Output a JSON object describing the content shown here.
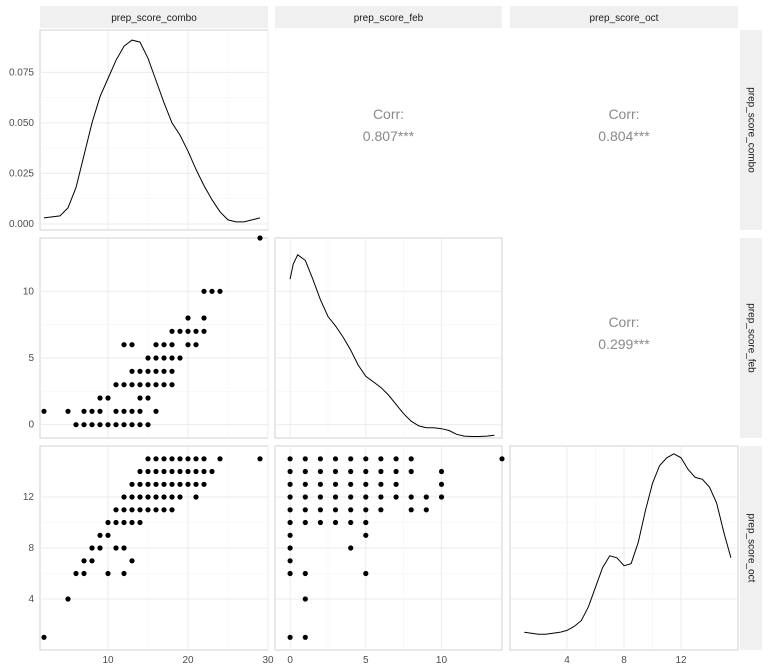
{
  "chart_data": {
    "type": "pairs",
    "variables": [
      "prep_score_combo",
      "prep_score_feb",
      "prep_score_oct"
    ],
    "ticks": {
      "prep_score_combo": [
        10,
        20,
        30
      ],
      "prep_score_feb": [
        0,
        5,
        10
      ],
      "prep_score_oct": [
        4,
        8,
        12
      ],
      "density_combo": [
        "0.000",
        "0.025",
        "0.050",
        "0.075"
      ]
    },
    "ranges": {
      "prep_score_combo": [
        1.5,
        30
      ],
      "prep_score_feb": [
        -1,
        14
      ],
      "prep_score_oct": [
        0,
        16
      ],
      "density_combo": [
        -0.003,
        0.096
      ],
      "density_feb_rel": [
        0,
        1.07
      ],
      "density_oct_rel": [
        0,
        1.04
      ]
    },
    "correlations": [
      {
        "pair": [
          "prep_score_combo",
          "prep_score_feb"
        ],
        "label": "Corr:",
        "value": "0.807***"
      },
      {
        "pair": [
          "prep_score_combo",
          "prep_score_oct"
        ],
        "label": "Corr:",
        "value": "0.804***"
      },
      {
        "pair": [
          "prep_score_feb",
          "prep_score_oct"
        ],
        "label": "Corr:",
        "value": "0.299***"
      }
    ],
    "density_combo": [
      [
        2,
        0.003
      ],
      [
        4,
        0.004
      ],
      [
        5,
        0.008
      ],
      [
        6,
        0.018
      ],
      [
        7,
        0.034
      ],
      [
        8,
        0.05
      ],
      [
        9,
        0.063
      ],
      [
        10,
        0.072
      ],
      [
        11,
        0.081
      ],
      [
        12,
        0.088
      ],
      [
        13,
        0.091
      ],
      [
        14,
        0.09
      ],
      [
        15,
        0.082
      ],
      [
        16,
        0.071
      ],
      [
        17,
        0.06
      ],
      [
        18,
        0.05
      ],
      [
        19,
        0.044
      ],
      [
        20,
        0.036
      ],
      [
        21,
        0.027
      ],
      [
        22,
        0.019
      ],
      [
        23,
        0.012
      ],
      [
        24,
        0.006
      ],
      [
        25,
        0.002
      ],
      [
        26,
        0.001
      ],
      [
        27,
        0.001
      ],
      [
        28,
        0.002
      ],
      [
        29,
        0.003
      ]
    ],
    "density_feb": [
      [
        0,
        0.85
      ],
      [
        0.2,
        0.93
      ],
      [
        0.5,
        0.98
      ],
      [
        1,
        0.95
      ],
      [
        1.5,
        0.85
      ],
      [
        2,
        0.74
      ],
      [
        2.5,
        0.65
      ],
      [
        3,
        0.6
      ],
      [
        3.5,
        0.54
      ],
      [
        4,
        0.47
      ],
      [
        4.5,
        0.39
      ],
      [
        5,
        0.33
      ],
      [
        5.5,
        0.3
      ],
      [
        6,
        0.27
      ],
      [
        6.5,
        0.23
      ],
      [
        7,
        0.18
      ],
      [
        7.5,
        0.13
      ],
      [
        8,
        0.09
      ],
      [
        8.5,
        0.065
      ],
      [
        9,
        0.055
      ],
      [
        9.5,
        0.055
      ],
      [
        10,
        0.05
      ],
      [
        10.5,
        0.04
      ],
      [
        11,
        0.02
      ],
      [
        11.5,
        0.01
      ],
      [
        12,
        0.008
      ],
      [
        12.5,
        0.008
      ],
      [
        13,
        0.01
      ],
      [
        13.5,
        0.015
      ]
    ],
    "density_oct": [
      [
        1,
        0.09
      ],
      [
        1.5,
        0.085
      ],
      [
        2,
        0.08
      ],
      [
        2.5,
        0.08
      ],
      [
        3,
        0.085
      ],
      [
        3.5,
        0.09
      ],
      [
        4,
        0.1
      ],
      [
        4.5,
        0.12
      ],
      [
        5,
        0.15
      ],
      [
        5.5,
        0.22
      ],
      [
        6,
        0.32
      ],
      [
        6.5,
        0.42
      ],
      [
        7,
        0.48
      ],
      [
        7.5,
        0.47
      ],
      [
        8,
        0.43
      ],
      [
        8.5,
        0.44
      ],
      [
        9,
        0.55
      ],
      [
        9.5,
        0.71
      ],
      [
        10,
        0.85
      ],
      [
        10.5,
        0.94
      ],
      [
        11,
        0.98
      ],
      [
        11.5,
        1.0
      ],
      [
        12,
        0.98
      ],
      [
        12.5,
        0.92
      ],
      [
        13,
        0.88
      ],
      [
        13.5,
        0.87
      ],
      [
        14,
        0.83
      ],
      [
        14.5,
        0.75
      ],
      [
        15,
        0.6
      ],
      [
        15.5,
        0.47
      ]
    ],
    "points_feb_vs_combo": [
      [
        2,
        1
      ],
      [
        5,
        1
      ],
      [
        6,
        0
      ],
      [
        7,
        0
      ],
      [
        7,
        1
      ],
      [
        8,
        0
      ],
      [
        8,
        1
      ],
      [
        9,
        0
      ],
      [
        9,
        1
      ],
      [
        9,
        2
      ],
      [
        10,
        0
      ],
      [
        10,
        2
      ],
      [
        11,
        0
      ],
      [
        11,
        1
      ],
      [
        11,
        3
      ],
      [
        12,
        0
      ],
      [
        12,
        1
      ],
      [
        12,
        3
      ],
      [
        12,
        6
      ],
      [
        13,
        0
      ],
      [
        13,
        1
      ],
      [
        13,
        3
      ],
      [
        13,
        4
      ],
      [
        13,
        6
      ],
      [
        14,
        0
      ],
      [
        14,
        1
      ],
      [
        14,
        2
      ],
      [
        14,
        3
      ],
      [
        14,
        4
      ],
      [
        15,
        0
      ],
      [
        15,
        2
      ],
      [
        15,
        3
      ],
      [
        15,
        4
      ],
      [
        15,
        5
      ],
      [
        16,
        1
      ],
      [
        16,
        3
      ],
      [
        16,
        4
      ],
      [
        16,
        5
      ],
      [
        16,
        6
      ],
      [
        17,
        3
      ],
      [
        17,
        4
      ],
      [
        17,
        5
      ],
      [
        17,
        6
      ],
      [
        18,
        3
      ],
      [
        18,
        4
      ],
      [
        18,
        5
      ],
      [
        18,
        6
      ],
      [
        18,
        7
      ],
      [
        19,
        5
      ],
      [
        19,
        7
      ],
      [
        20,
        6
      ],
      [
        20,
        7
      ],
      [
        20,
        8
      ],
      [
        21,
        6
      ],
      [
        21,
        7
      ],
      [
        22,
        7
      ],
      [
        22,
        8
      ],
      [
        22,
        10
      ],
      [
        23,
        10
      ],
      [
        24,
        10
      ],
      [
        29,
        14
      ]
    ],
    "points_oct_vs_combo": [
      [
        2,
        1
      ],
      [
        5,
        4
      ],
      [
        6,
        6
      ],
      [
        7,
        6
      ],
      [
        7,
        7
      ],
      [
        8,
        7
      ],
      [
        8,
        8
      ],
      [
        9,
        8
      ],
      [
        9,
        9
      ],
      [
        10,
        6
      ],
      [
        10,
        9
      ],
      [
        10,
        10
      ],
      [
        11,
        8
      ],
      [
        11,
        10
      ],
      [
        11,
        11
      ],
      [
        12,
        6
      ],
      [
        12,
        8
      ],
      [
        12,
        10
      ],
      [
        12,
        11
      ],
      [
        12,
        12
      ],
      [
        13,
        7
      ],
      [
        13,
        10
      ],
      [
        13,
        11
      ],
      [
        13,
        12
      ],
      [
        13,
        13
      ],
      [
        14,
        10
      ],
      [
        14,
        11
      ],
      [
        14,
        12
      ],
      [
        14,
        13
      ],
      [
        14,
        14
      ],
      [
        15,
        11
      ],
      [
        15,
        12
      ],
      [
        15,
        13
      ],
      [
        15,
        14
      ],
      [
        15,
        15
      ],
      [
        16,
        11
      ],
      [
        16,
        12
      ],
      [
        16,
        13
      ],
      [
        16,
        14
      ],
      [
        16,
        15
      ],
      [
        17,
        11
      ],
      [
        17,
        12
      ],
      [
        17,
        13
      ],
      [
        17,
        14
      ],
      [
        17,
        15
      ],
      [
        18,
        11
      ],
      [
        18,
        12
      ],
      [
        18,
        13
      ],
      [
        18,
        14
      ],
      [
        18,
        15
      ],
      [
        19,
        12
      ],
      [
        19,
        13
      ],
      [
        19,
        14
      ],
      [
        19,
        15
      ],
      [
        20,
        13
      ],
      [
        20,
        14
      ],
      [
        20,
        15
      ],
      [
        21,
        12
      ],
      [
        21,
        13
      ],
      [
        21,
        14
      ],
      [
        21,
        15
      ],
      [
        22,
        13
      ],
      [
        22,
        14
      ],
      [
        22,
        15
      ],
      [
        23,
        14
      ],
      [
        24,
        15
      ],
      [
        29,
        15
      ]
    ],
    "points_oct_vs_feb": [
      [
        0,
        1
      ],
      [
        0,
        6
      ],
      [
        0,
        7
      ],
      [
        0,
        8
      ],
      [
        0,
        9
      ],
      [
        0,
        10
      ],
      [
        0,
        11
      ],
      [
        0,
        12
      ],
      [
        0,
        13
      ],
      [
        0,
        14
      ],
      [
        0,
        15
      ],
      [
        1,
        1
      ],
      [
        1,
        4
      ],
      [
        1,
        6
      ],
      [
        1,
        10
      ],
      [
        1,
        11
      ],
      [
        1,
        12
      ],
      [
        1,
        13
      ],
      [
        1,
        14
      ],
      [
        1,
        15
      ],
      [
        2,
        10
      ],
      [
        2,
        11
      ],
      [
        2,
        12
      ],
      [
        2,
        13
      ],
      [
        2,
        14
      ],
      [
        2,
        15
      ],
      [
        3,
        10
      ],
      [
        3,
        11
      ],
      [
        3,
        12
      ],
      [
        3,
        13
      ],
      [
        3,
        14
      ],
      [
        3,
        15
      ],
      [
        4,
        8
      ],
      [
        4,
        10
      ],
      [
        4,
        11
      ],
      [
        4,
        12
      ],
      [
        4,
        13
      ],
      [
        4,
        14
      ],
      [
        4,
        15
      ],
      [
        5,
        6
      ],
      [
        5,
        9
      ],
      [
        5,
        10
      ],
      [
        5,
        11
      ],
      [
        5,
        12
      ],
      [
        5,
        13
      ],
      [
        5,
        14
      ],
      [
        5,
        15
      ],
      [
        6,
        11
      ],
      [
        6,
        12
      ],
      [
        6,
        13
      ],
      [
        6,
        14
      ],
      [
        6,
        15
      ],
      [
        7,
        12
      ],
      [
        7,
        13
      ],
      [
        7,
        14
      ],
      [
        7,
        15
      ],
      [
        8,
        11
      ],
      [
        8,
        12
      ],
      [
        8,
        14
      ],
      [
        8,
        15
      ],
      [
        9,
        11
      ],
      [
        9,
        12
      ],
      [
        10,
        12
      ],
      [
        10,
        13
      ],
      [
        10,
        14
      ],
      [
        14,
        15
      ]
    ]
  }
}
